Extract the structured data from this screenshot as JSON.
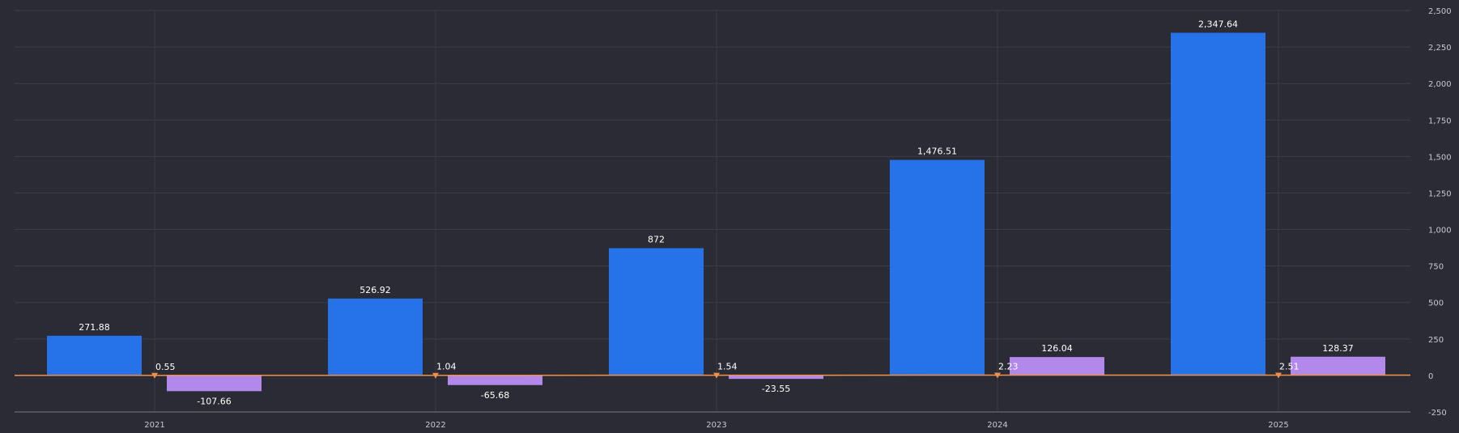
{
  "chart_data": {
    "type": "bar",
    "categories": [
      "2021",
      "2022",
      "2023",
      "2024",
      "2025"
    ],
    "series": [
      {
        "values": [
          271.88,
          526.92,
          872,
          1476.51,
          2347.64
        ],
        "color": "#2672e8",
        "kind": "bar"
      },
      {
        "values": [
          -107.66,
          -65.68,
          -23.55,
          126.04,
          128.37
        ],
        "color": "#b388eb",
        "kind": "bar"
      },
      {
        "values": [
          0.55,
          1.04,
          1.54,
          2.23,
          2.51
        ],
        "color": "#f0914a",
        "kind": "line"
      }
    ],
    "value_labels": [
      [
        "271.88",
        "526.92",
        "872",
        "1,476.51",
        "2,347.64"
      ],
      [
        "-107.66",
        "-65.68",
        "-23.55",
        "126.04",
        "128.37"
      ],
      [
        "0.55",
        "1.04",
        "1.54",
        "2.23",
        "2.51"
      ]
    ],
    "y_ticks": [
      -250,
      0,
      250,
      500,
      750,
      1000,
      1250,
      1500,
      1750,
      2000,
      2250,
      2500
    ],
    "y_tick_labels": [
      "-250",
      "0",
      "250",
      "500",
      "750",
      "1,000",
      "1,250",
      "1,500",
      "1,750",
      "2,000",
      "2,250",
      "2,500"
    ],
    "ylim": [
      -250,
      2500
    ],
    "y_axis_side": "right",
    "grid": true,
    "legend": "none",
    "title": "",
    "xlabel": "",
    "ylabel": ""
  }
}
